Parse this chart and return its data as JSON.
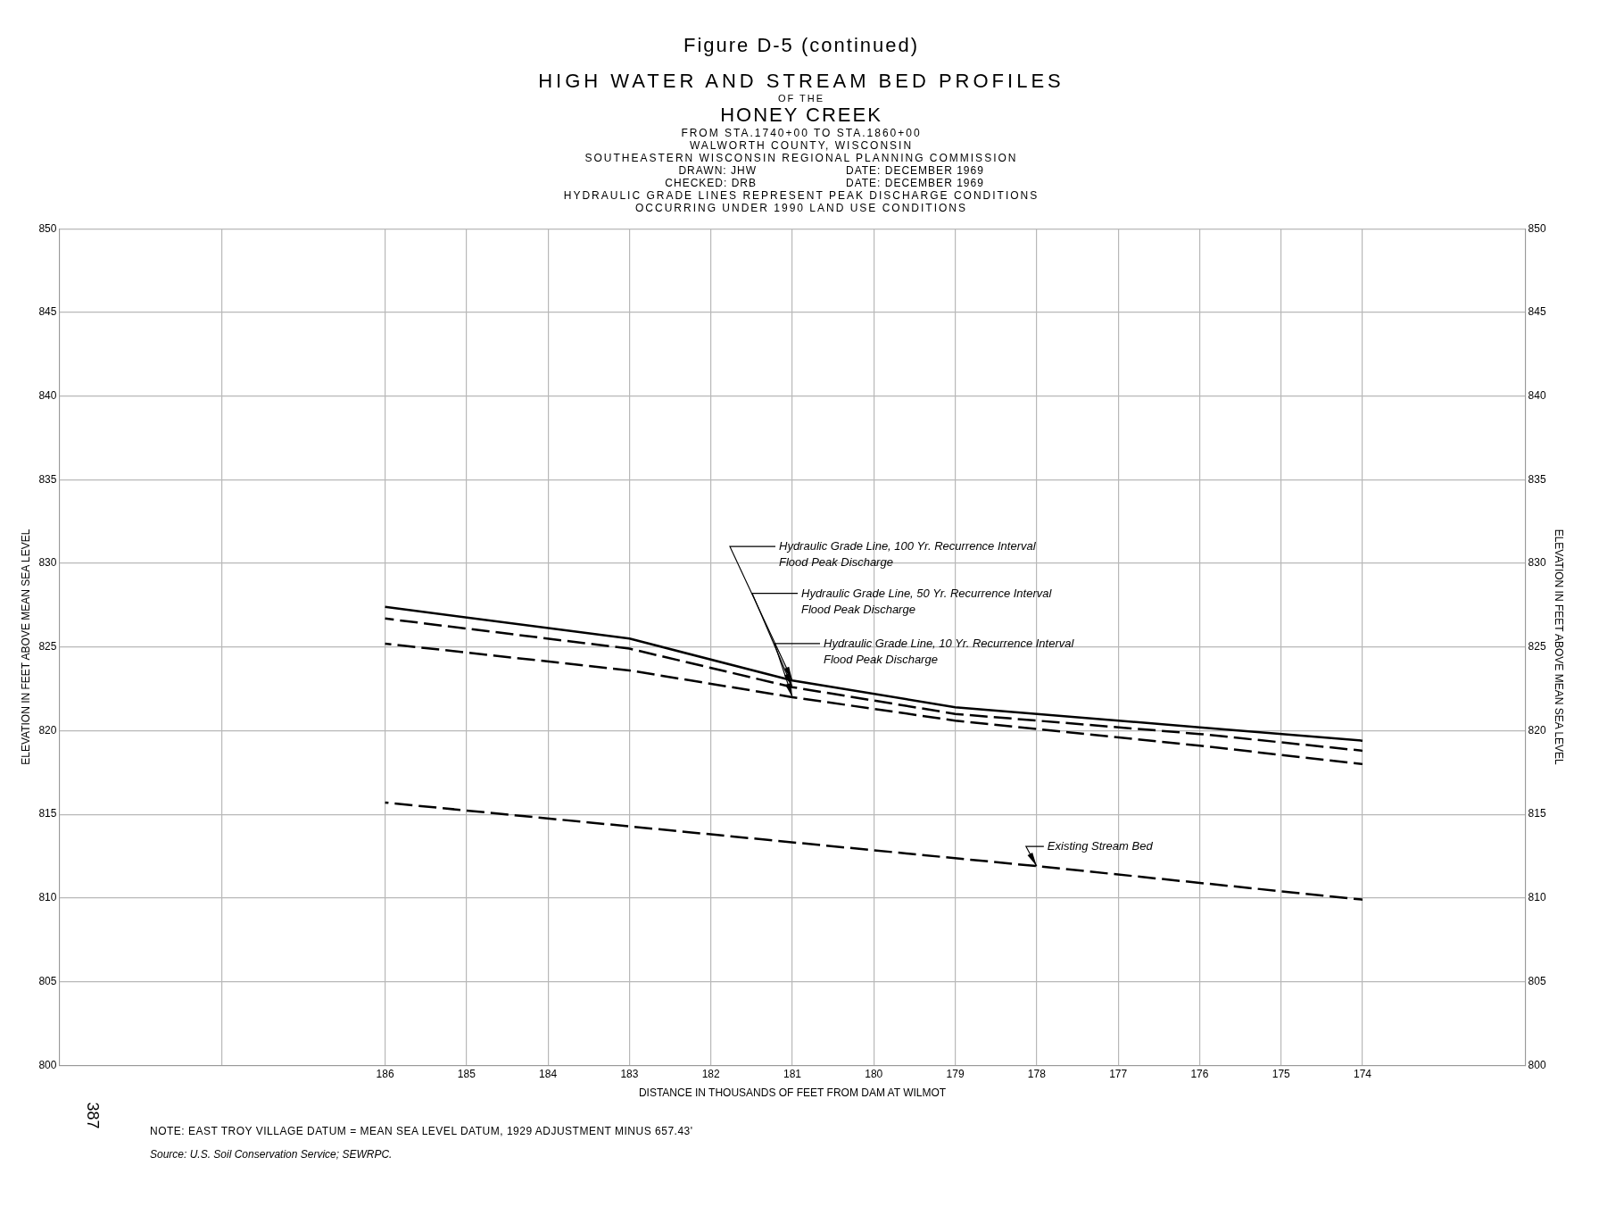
{
  "chart_data": {
    "type": "line",
    "title": "Figure D-5 (continued)",
    "subtitle": "HIGH WATER AND STREAM BED PROFILES",
    "annotations": [
      "OF THE",
      "HONEY CREEK",
      "FROM STA.1740+00 TO STA.1860+00",
      "WALWORTH COUNTY, WISCONSIN",
      "SOUTHEASTERN WISCONSIN REGIONAL PLANNING COMMISSION",
      "DRAWN: JHW",
      "DATE: DECEMBER 1969",
      "CHECKED: DRB",
      "DATE: DECEMBER 1969",
      "HYDRAULIC GRADE LINES REPRESENT PEAK DISCHARGE CONDITIONS",
      "OCCURRING UNDER 1990 LAND USE CONDITIONS",
      "NOTE: EAST TROY VILLAGE DATUM = MEAN SEA LEVEL DATUM, 1929 ADJUSTMENT MINUS 657.43'",
      "Source: U.S. Soil Conservation Service; SEWRPC.",
      "387"
    ],
    "xlabel": "DISTANCE IN THOUSANDS OF FEET FROM DAM AT WILMOT",
    "ylabel": "ELEVATION IN FEET ABOVE MEAN SEA LEVEL",
    "y2label": "ELEVATION IN FEET ABOVE MEAN SEA LEVEL",
    "x": [
      186,
      183,
      181,
      179,
      176,
      174
    ],
    "series": [
      {
        "name": "Hydraulic Grade Line, 100 Yr. Recurrence Interval Flood Peak Discharge",
        "color": "#000000",
        "line_style": "solid",
        "values": [
          827.4,
          825.5,
          823.0,
          821.4,
          820.2,
          819.4
        ]
      },
      {
        "name": "Hydraulic Grade Line, 50 Yr. Recurrence Interval Flood Peak Discharge",
        "color": "#000000",
        "line_style": "dashed",
        "values": [
          826.7,
          824.9,
          822.6,
          821.0,
          819.8,
          818.8
        ]
      },
      {
        "name": "Hydraulic Grade Line, 10 Yr. Recurrence Interval Flood Peak Discharge",
        "color": "#000000",
        "line_style": "dashed",
        "values": [
          825.2,
          823.6,
          822.0,
          820.6,
          819.1,
          818.0
        ]
      },
      {
        "name": "Existing Stream Bed",
        "color": "#000000",
        "line_style": "dashed",
        "x": [
          186,
          182,
          178,
          174
        ],
        "values": [
          815.7,
          813.8,
          811.9,
          809.9
        ]
      }
    ],
    "xlim": [
      190,
      172
    ],
    "xticks": [
      {
        "value": 190,
        "label": null
      },
      {
        "value": 188,
        "label": null
      },
      186,
      185,
      184,
      183,
      182,
      181,
      180,
      179,
      178,
      177,
      176,
      175,
      174,
      {
        "value": 172,
        "label": null
      }
    ],
    "ylim": [
      800,
      850
    ],
    "yticks": [
      800,
      805,
      810,
      815,
      820,
      825,
      830,
      835,
      840,
      845,
      850
    ],
    "y2lim": [
      800,
      850
    ],
    "y2ticks": [
      800,
      805,
      810,
      815,
      820,
      825,
      830,
      835,
      840,
      845,
      850
    ],
    "grid": true,
    "legend": false,
    "marker": "none"
  }
}
